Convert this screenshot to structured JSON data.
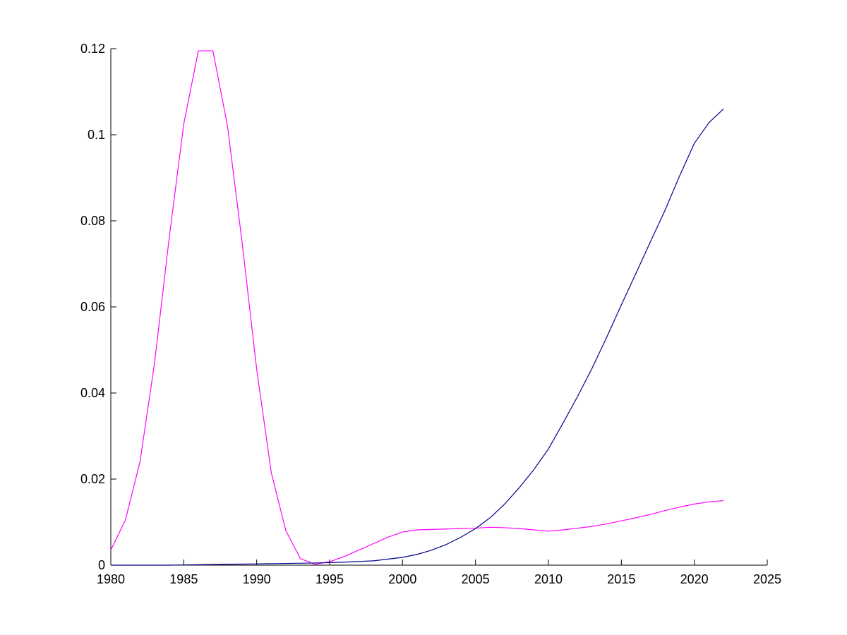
{
  "chart_data": {
    "type": "line",
    "title": "",
    "xlabel": "",
    "ylabel": "",
    "xlim": [
      1980,
      2025
    ],
    "ylim": [
      0,
      0.12
    ],
    "xticks": [
      "1980",
      "1985",
      "1990",
      "1995",
      "2000",
      "2005",
      "2010",
      "2015",
      "2020",
      "2025"
    ],
    "yticks": [
      "0",
      "0.02",
      "0.04",
      "0.06",
      "0.08",
      "0.1",
      "0.12"
    ],
    "grid": false,
    "legend": "none",
    "series": [
      {
        "color": "#ff00ff",
        "x": [
          1980,
          1981,
          1982,
          1983,
          1984,
          1985,
          1986,
          1987,
          1988,
          1989,
          1990,
          1991,
          1992,
          1993,
          1994,
          1995,
          1996,
          1997,
          1998,
          1999,
          2000,
          2001,
          2002,
          2003,
          2004,
          2005,
          2006,
          2007,
          2008,
          2009,
          2010,
          2011,
          2012,
          2013,
          2014,
          2015,
          2016,
          2017,
          2018,
          2019,
          2020,
          2021,
          2022
        ],
        "y": [
          0.0035,
          0.0105,
          0.024,
          0.047,
          0.076,
          0.1025,
          0.1195,
          0.1195,
          0.102,
          0.075,
          0.0455,
          0.0215,
          0.008,
          0.0015,
          0.0002,
          0.0008,
          0.002,
          0.0035,
          0.005,
          0.0065,
          0.0077,
          0.0082,
          0.0083,
          0.0084,
          0.0085,
          0.0086,
          0.0088,
          0.0087,
          0.0085,
          0.0082,
          0.0079,
          0.0082,
          0.0086,
          0.009,
          0.0096,
          0.0103,
          0.011,
          0.0118,
          0.0127,
          0.0135,
          0.0142,
          0.0147,
          0.015
        ]
      },
      {
        "color": "#00008b",
        "x": [
          1980,
          1982,
          1984,
          1986,
          1988,
          1990,
          1992,
          1994,
          1996,
          1998,
          2000,
          2001,
          2002,
          2003,
          2004,
          2005,
          2006,
          2007,
          2008,
          2009,
          2010,
          2011,
          2012,
          2013,
          2014,
          2015,
          2016,
          2017,
          2018,
          2019,
          2020,
          2021,
          2022
        ],
        "y": [
          0,
          0,
          0,
          0.0001,
          0.0002,
          0.0003,
          0.0004,
          0.0005,
          0.0007,
          0.001,
          0.0018,
          0.0025,
          0.0035,
          0.0048,
          0.0065,
          0.0085,
          0.011,
          0.0142,
          0.018,
          0.0222,
          0.027,
          0.033,
          0.0392,
          0.0458,
          0.053,
          0.0605,
          0.0678,
          0.0752,
          0.0825,
          0.0905,
          0.098,
          0.1028,
          0.106
        ]
      }
    ]
  }
}
